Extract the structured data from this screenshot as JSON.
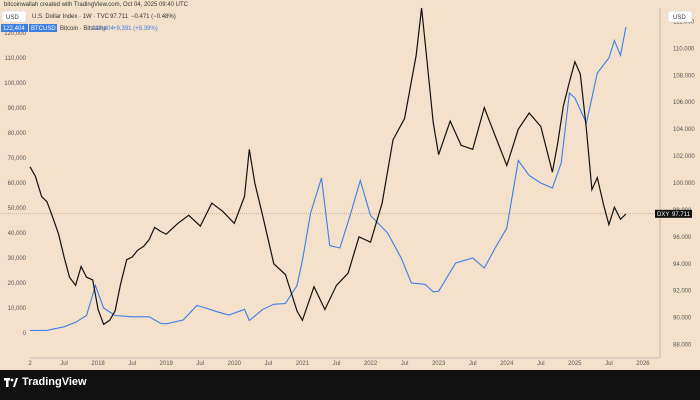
{
  "header": {
    "attribution": "bitcoinwallah created with TradingView.com, Oct 04, 2025 09:40 UTC",
    "dxy_line": "U.S. Dollar Index · 1W · TVC",
    "dxy_value": "97.711",
    "dxy_change": "−0.471 (−0.48%)",
    "btc_badge_value": "122,404",
    "btc_badge_label": "BTCUSD",
    "btc_line": "Bitcoin · Bitstamp",
    "btc_value": "122,404",
    "btc_change": "+9,391 (+8.39%)"
  },
  "currency_left": "USD",
  "currency_right": "USD",
  "current_label": "DXY",
  "current_value": "97.711",
  "brand": "TradingView",
  "colors": {
    "background": "#f4e1cc",
    "dxy": "#111111",
    "btc": "#3d7ee8",
    "footer": "#111111"
  },
  "chart_data": {
    "type": "line",
    "x_ticks": [
      "2",
      "Jul",
      "2018",
      "Jul",
      "2019",
      "Jul",
      "2020",
      "Jul",
      "2021",
      "Jul",
      "2022",
      "Jul",
      "2023",
      "Jul",
      "2024",
      "Jul",
      "2025",
      "Jul",
      "2026"
    ],
    "x_tick_pos": [
      2017.0,
      2017.5,
      2018.0,
      2018.5,
      2019.0,
      2019.5,
      2020.0,
      2020.5,
      2021.0,
      2021.5,
      2022.0,
      2022.5,
      2023.0,
      2023.5,
      2024.0,
      2024.5,
      2025.0,
      2025.5,
      2026.0
    ],
    "xlim": [
      2017.0,
      2026.25
    ],
    "left_axis": {
      "ticks": [
        "0",
        "10,000",
        "20,000",
        "30,000",
        "40,000",
        "50,000",
        "60,000",
        "70,000",
        "80,000",
        "90,000",
        "100,000",
        "110,000",
        "120,000"
      ],
      "tick_values": [
        0,
        10000,
        20000,
        30000,
        40000,
        50000,
        60000,
        70000,
        80000,
        90000,
        100000,
        110000,
        120000
      ],
      "range": [
        -10000,
        130000
      ]
    },
    "right_axis": {
      "ticks": [
        "112.000",
        "110.000",
        "108.000",
        "106.000",
        "104.000",
        "102.000",
        "100.000",
        "98.000",
        "96.000",
        "94.000",
        "92.000",
        "90.000",
        "88.000"
      ],
      "tick_values": [
        112,
        110,
        108,
        106,
        104,
        102,
        100,
        98,
        96,
        94,
        92,
        90,
        88
      ],
      "range": [
        87,
        113
      ]
    },
    "series": [
      {
        "name": "U.S. Dollar Index",
        "axis": "right",
        "x": [
          2017.0,
          2017.08,
          2017.17,
          2017.25,
          2017.33,
          2017.42,
          2017.5,
          2017.58,
          2017.67,
          2017.75,
          2017.83,
          2017.92,
          2018.0,
          2018.08,
          2018.17,
          2018.25,
          2018.33,
          2018.42,
          2018.5,
          2018.58,
          2018.67,
          2018.75,
          2018.83,
          2018.92,
          2019.0,
          2019.17,
          2019.33,
          2019.5,
          2019.67,
          2019.83,
          2020.0,
          2020.15,
          2020.22,
          2020.3,
          2020.42,
          2020.58,
          2020.75,
          2020.92,
          2021.0,
          2021.17,
          2021.33,
          2021.5,
          2021.67,
          2021.83,
          2022.0,
          2022.17,
          2022.33,
          2022.5,
          2022.67,
          2022.75,
          2022.83,
          2022.92,
          2023.0,
          2023.17,
          2023.33,
          2023.5,
          2023.67,
          2023.83,
          2024.0,
          2024.17,
          2024.33,
          2024.5,
          2024.67,
          2024.75,
          2024.83,
          2024.92,
          2025.0,
          2025.08,
          2025.17,
          2025.25,
          2025.33,
          2025.42,
          2025.5,
          2025.58,
          2025.67,
          2025.75
        ],
        "y": [
          101.2,
          100.5,
          99.0,
          98.6,
          97.5,
          96.2,
          94.5,
          93.0,
          92.4,
          93.8,
          93.0,
          92.8,
          90.6,
          89.5,
          89.8,
          90.5,
          92.5,
          94.3,
          94.5,
          95.0,
          95.3,
          95.8,
          96.7,
          96.4,
          96.2,
          97.0,
          97.6,
          96.8,
          98.5,
          97.9,
          97.0,
          99.0,
          102.5,
          100.0,
          97.5,
          94.0,
          93.2,
          90.5,
          89.8,
          92.3,
          90.6,
          92.4,
          93.3,
          96.0,
          95.6,
          98.5,
          103.2,
          104.8,
          109.5,
          113.0,
          109.0,
          104.5,
          102.1,
          104.6,
          102.8,
          102.5,
          105.6,
          103.5,
          101.3,
          104.0,
          105.2,
          104.2,
          100.8,
          103.0,
          105.7,
          107.5,
          109.0,
          108.1,
          104.0,
          99.5,
          100.4,
          98.4,
          96.9,
          98.2,
          97.3,
          97.7
        ]
      },
      {
        "name": "Bitcoin",
        "axis": "left",
        "x": [
          2017.0,
          2017.25,
          2017.5,
          2017.67,
          2017.83,
          2017.96,
          2018.08,
          2018.25,
          2018.5,
          2018.75,
          2018.92,
          2019.0,
          2019.25,
          2019.45,
          2019.58,
          2019.75,
          2019.92,
          2020.15,
          2020.22,
          2020.42,
          2020.58,
          2020.75,
          2020.92,
          2021.0,
          2021.12,
          2021.28,
          2021.4,
          2021.55,
          2021.7,
          2021.85,
          2022.0,
          2022.25,
          2022.45,
          2022.6,
          2022.8,
          2022.92,
          2023.0,
          2023.25,
          2023.5,
          2023.67,
          2023.83,
          2024.0,
          2024.17,
          2024.33,
          2024.5,
          2024.67,
          2024.8,
          2024.92,
          2025.0,
          2025.17,
          2025.33,
          2025.5,
          2025.58,
          2025.67,
          2025.75
        ],
        "y": [
          1000,
          1100,
          2500,
          4300,
          7000,
          19000,
          10000,
          7000,
          6500,
          6500,
          3800,
          3700,
          5200,
          11000,
          10000,
          8500,
          7200,
          9500,
          5000,
          9500,
          11500,
          11800,
          19000,
          29000,
          48000,
          62000,
          35000,
          34000,
          47000,
          61000,
          47000,
          40000,
          30000,
          20000,
          19500,
          16500,
          16700,
          28000,
          30000,
          26000,
          34000,
          42000,
          69000,
          63000,
          60000,
          58000,
          68000,
          96000,
          94000,
          84000,
          104000,
          110000,
          117000,
          111000,
          122400
        ]
      }
    ]
  }
}
